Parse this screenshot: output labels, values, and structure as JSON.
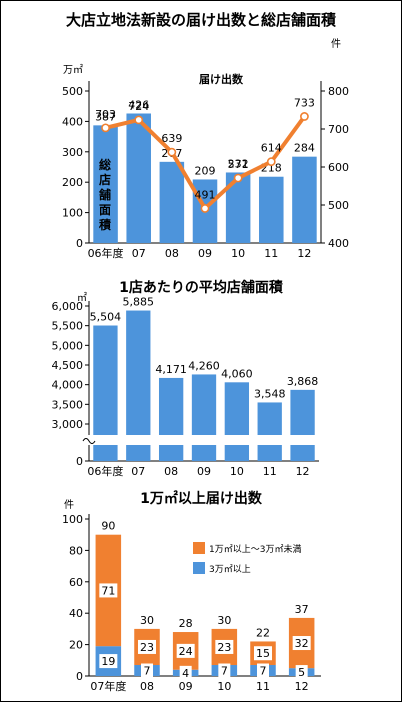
{
  "chart_data": [
    {
      "type": "bar",
      "title": "大店立地法新設の届け出数と総店舗面積",
      "categories": [
        "06年度",
        "07",
        "08",
        "09",
        "10",
        "11",
        "12"
      ],
      "series": [
        {
          "name": "総店舗面積",
          "values": [
            387,
            426,
            267,
            209,
            232,
            218,
            284
          ]
        },
        {
          "name": "届け出数",
          "type": "line",
          "values": [
            703,
            724,
            639,
            491,
            571,
            614,
            733
          ]
        }
      ],
      "y_left": {
        "unit": "万㎡",
        "ylim": [
          0,
          500
        ],
        "ticks": [
          "0",
          "100",
          "200",
          "300",
          "400",
          "500"
        ]
      },
      "y_right": {
        "unit": "件",
        "ylim": [
          400,
          800
        ],
        "ticks": [
          "400",
          "500",
          "600",
          "700",
          "800"
        ]
      },
      "colors": {
        "bar": "#4d94db",
        "line": "#f08030"
      }
    },
    {
      "type": "bar",
      "title": "1店あたりの平均店舗面積",
      "unit": "㎡",
      "categories": [
        "06年度",
        "07",
        "08",
        "09",
        "10",
        "11",
        "12"
      ],
      "values": [
        5504,
        5885,
        4171,
        4260,
        4060,
        3548,
        3868
      ],
      "labels": [
        "5,504",
        "5,885",
        "4,171",
        "4,260",
        "4,060",
        "3,548",
        "3,868"
      ],
      "ylim": [
        3000,
        6000
      ],
      "ticks": [
        "3,000",
        "3,500",
        "4,000",
        "4,500",
        "5,000",
        "5,500",
        "6,000"
      ],
      "zero": "0",
      "broken_axis": true,
      "colors": {
        "bar": "#4d94db"
      }
    },
    {
      "type": "bar",
      "stacked": true,
      "title": "1万㎡以上届け出数",
      "unit": "件",
      "categories": [
        "07年度",
        "08",
        "09",
        "10",
        "11",
        "12"
      ],
      "series": [
        {
          "name": "3万㎡以上",
          "values": [
            19,
            7,
            4,
            7,
            7,
            5
          ]
        },
        {
          "name": "1万㎡以上～3万㎡未満",
          "values": [
            71,
            23,
            24,
            23,
            15,
            32
          ]
        }
      ],
      "totals": [
        90,
        30,
        28,
        30,
        22,
        37
      ],
      "ylim": [
        0,
        100
      ],
      "ticks": [
        "0",
        "20",
        "40",
        "60",
        "80",
        "100"
      ],
      "colors": {
        "lower": "#4d94db",
        "upper": "#f08030"
      }
    }
  ]
}
